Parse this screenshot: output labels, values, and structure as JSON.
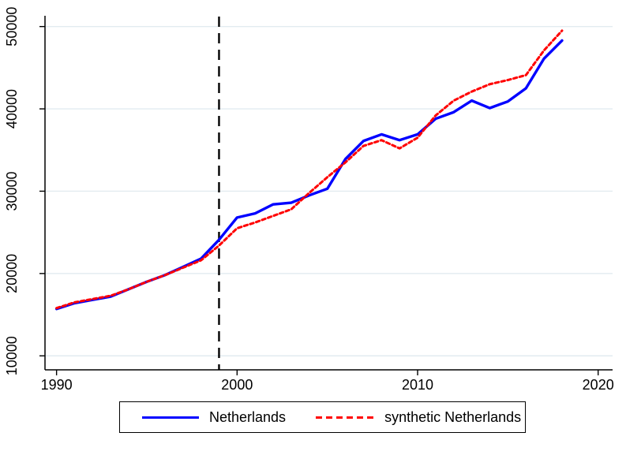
{
  "chart_data": {
    "type": "line",
    "title": "",
    "xlabel": "",
    "ylabel": "",
    "x": [
      1990,
      1991,
      1992,
      1993,
      1994,
      1995,
      1996,
      1997,
      1998,
      1999,
      2000,
      2001,
      2002,
      2003,
      2004,
      2005,
      2006,
      2007,
      2008,
      2009,
      2010,
      2011,
      2012,
      2013,
      2014,
      2015,
      2016,
      2017,
      2018
    ],
    "series": [
      {
        "name": "Netherlands",
        "color": "#0000ff",
        "style": "solid",
        "values": [
          15700,
          16400,
          16800,
          17200,
          18100,
          19000,
          19800,
          20800,
          21800,
          24100,
          26800,
          27300,
          28400,
          28600,
          29500,
          30300,
          33900,
          36100,
          36900,
          36200,
          36900,
          38800,
          39600,
          41000,
          40100,
          40900,
          42500,
          46100,
          48300
        ]
      },
      {
        "name": "synthetic Netherlands",
        "color": "#ff0000",
        "style": "dashed",
        "values": [
          15800,
          16500,
          16900,
          17300,
          18100,
          19000,
          19800,
          20700,
          21600,
          23400,
          25500,
          26200,
          27000,
          27800,
          29800,
          31700,
          33500,
          35500,
          36200,
          35200,
          36500,
          39200,
          41000,
          42100,
          43000,
          43500,
          44100,
          47100,
          49500
        ]
      }
    ],
    "x_ticks": [
      1990,
      2000,
      2010,
      2020
    ],
    "x_tick_labels": [
      "1990",
      "2000",
      "2010",
      "2020"
    ],
    "y_ticks": [
      10000,
      20000,
      30000,
      40000,
      50000
    ],
    "y_tick_labels": [
      "10000",
      "20000",
      "30000",
      "40000",
      "50000"
    ],
    "xlim": [
      1989.36,
      2020.8
    ],
    "ylim": [
      8300,
      51500
    ],
    "grid": true,
    "grid_color": "#e2ebf0",
    "axis_color": "#000000",
    "treatment_line": {
      "x": 1999,
      "color": "#000000",
      "style": "dashed"
    },
    "legend": {
      "position": "bottom-center",
      "border": true,
      "entries": [
        "Netherlands",
        "synthetic Netherlands"
      ]
    }
  }
}
